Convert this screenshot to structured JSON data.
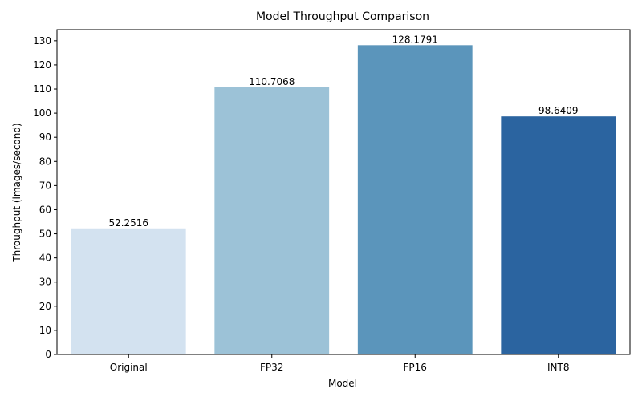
{
  "chart_data": {
    "type": "bar",
    "title": "Model Throughput Comparison",
    "xlabel": "Model",
    "ylabel": "Throughput (images/second)",
    "categories": [
      "Original",
      "FP32",
      "FP16",
      "INT8"
    ],
    "values": [
      52.2516,
      110.7068,
      128.1791,
      98.6409
    ],
    "value_labels": [
      "52.2516",
      "110.7068",
      "128.1791",
      "98.6409"
    ],
    "ylim": [
      0,
      134.6
    ],
    "yticks": [
      0,
      10,
      20,
      30,
      40,
      50,
      60,
      70,
      80,
      90,
      100,
      110,
      120,
      130
    ],
    "colors": [
      "#d3e2f0",
      "#9cc2d7",
      "#5b95bb",
      "#2b64a0"
    ],
    "grid": false,
    "legend": "none"
  }
}
